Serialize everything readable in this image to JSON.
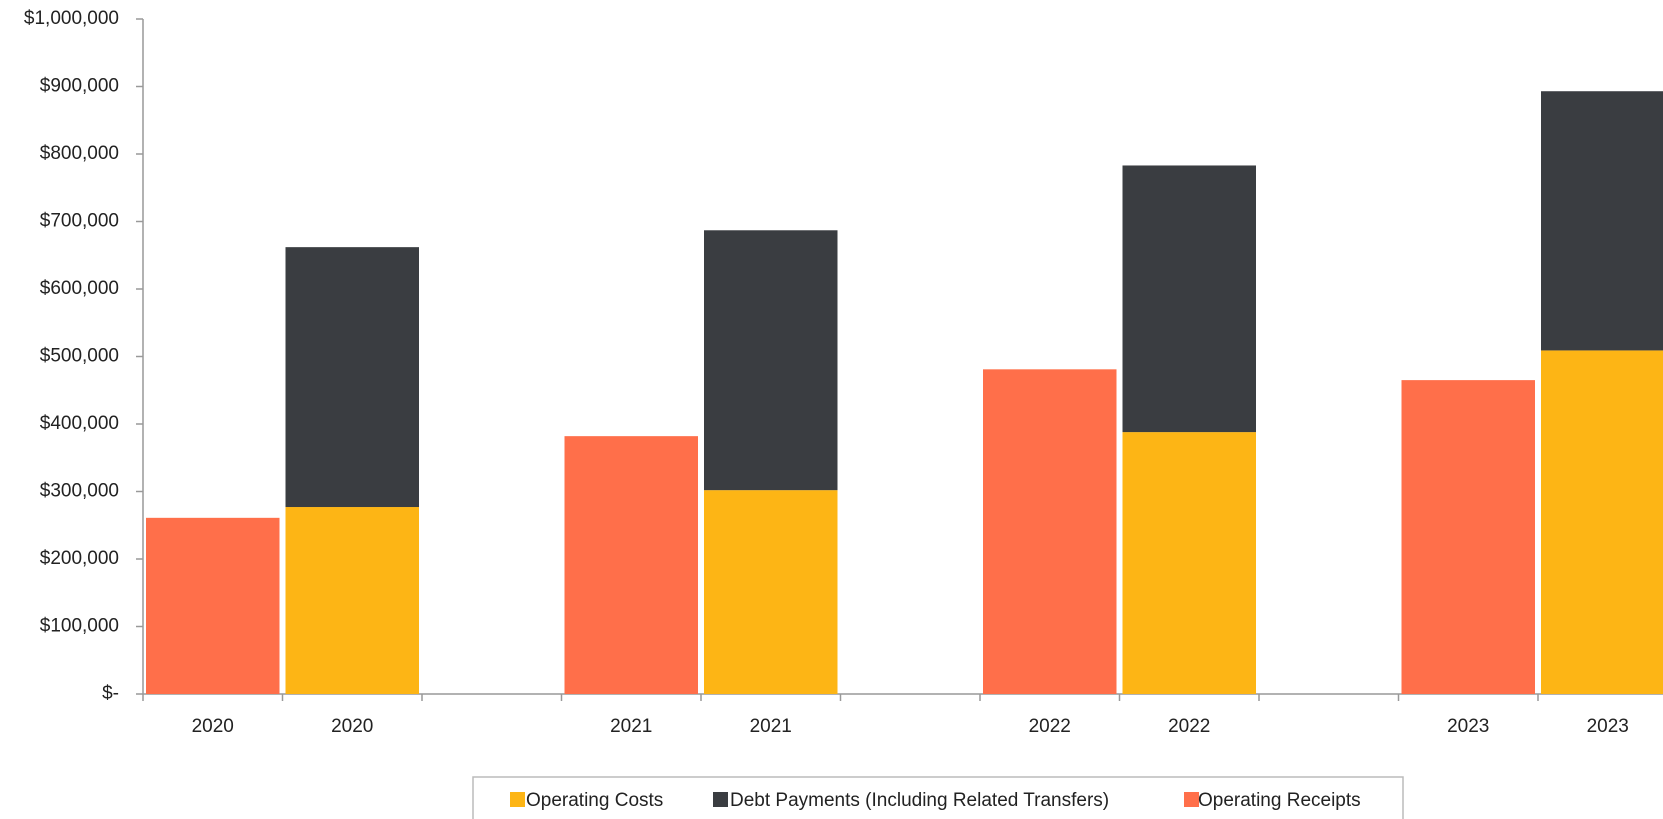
{
  "chart_data": {
    "type": "bar",
    "categories": [
      "2020",
      "2020",
      null,
      "2021",
      "2021",
      null,
      "2022",
      "2022",
      null,
      "2023",
      "2023"
    ],
    "series": [
      {
        "name": "Operating Costs",
        "color": "#FDB515",
        "values": [
          null,
          277000,
          null,
          null,
          302000,
          null,
          null,
          388000,
          null,
          null,
          509000
        ]
      },
      {
        "name": "Debt Payments (Including Related Transfers)",
        "color": "#3A3D41",
        "values": [
          null,
          385000,
          null,
          null,
          385000,
          null,
          null,
          395000,
          null,
          null,
          384000
        ]
      },
      {
        "name": "Operating Receipts",
        "color": "#FF6F4A",
        "values": [
          261000,
          null,
          null,
          382000,
          null,
          null,
          481000,
          null,
          null,
          465000,
          null
        ]
      }
    ],
    "stacked": true,
    "ylim": [
      0,
      1000000
    ],
    "yticks": [
      {
        "value": 0,
        "label": "$-"
      },
      {
        "value": 100000,
        "label": "$100,000"
      },
      {
        "value": 200000,
        "label": "$200,000"
      },
      {
        "value": 300000,
        "label": "$300,000"
      },
      {
        "value": 400000,
        "label": "$400,000"
      },
      {
        "value": 500000,
        "label": "$500,000"
      },
      {
        "value": 600000,
        "label": "$600,000"
      },
      {
        "value": 700000,
        "label": "$700,000"
      },
      {
        "value": 800000,
        "label": "$800,000"
      },
      {
        "value": 900000,
        "label": "$900,000"
      },
      {
        "value": 1000000,
        "label": "$1,000,000"
      }
    ],
    "grid": false,
    "legend": "bottom"
  }
}
